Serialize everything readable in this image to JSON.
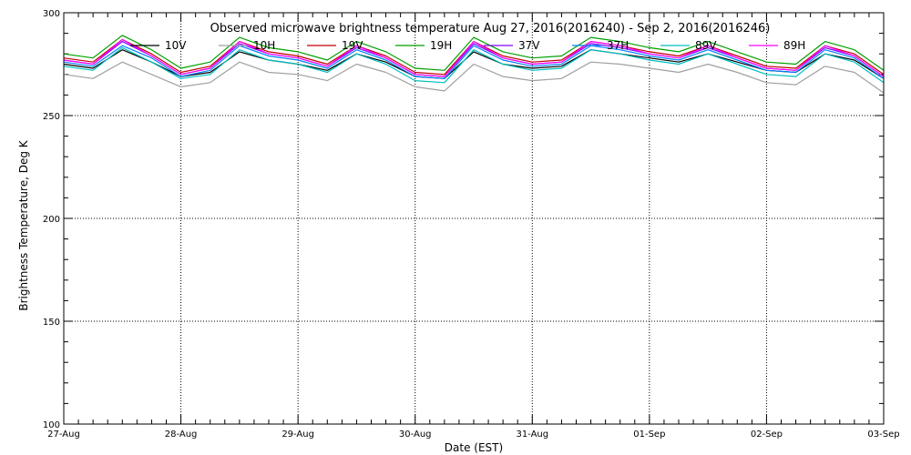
{
  "chart_data": {
    "type": "line",
    "title": "Observed microwave brightness temperature Aug 27, 2016(2016240) - Sep  2, 2016(2016246)",
    "xlabel": "Date (EST)",
    "ylabel": "Brightness Temperature, Deg K",
    "xlim": [
      "2016-08-27",
      "2016-09-03"
    ],
    "ylim": [
      100,
      300
    ],
    "grid": true,
    "legend_position": "top",
    "xticks": [
      "27-Aug",
      "28-Aug",
      "29-Aug",
      "30-Aug",
      "31-Aug",
      "01-Sep",
      "02-Sep",
      "03-Sep"
    ],
    "yticks": [
      100,
      150,
      200,
      250,
      300
    ],
    "x": [
      "2016-08-27 00:00",
      "2016-08-27 06:00",
      "2016-08-27 12:00",
      "2016-08-27 18:00",
      "2016-08-28 00:00",
      "2016-08-28 06:00",
      "2016-08-28 12:00",
      "2016-08-28 18:00",
      "2016-08-29 00:00",
      "2016-08-29 06:00",
      "2016-08-29 12:00",
      "2016-08-29 18:00",
      "2016-08-30 00:00",
      "2016-08-30 06:00",
      "2016-08-30 12:00",
      "2016-08-30 18:00",
      "2016-08-31 00:00",
      "2016-08-31 06:00",
      "2016-08-31 12:00",
      "2016-08-31 18:00",
      "2016-09-01 00:00",
      "2016-09-01 06:00",
      "2016-09-01 12:00",
      "2016-09-01 18:00",
      "2016-09-02 00:00",
      "2016-09-02 06:00",
      "2016-09-02 12:00",
      "2016-09-02 18:00",
      "2016-09-03 00:00"
    ],
    "series": [
      {
        "name": "10V",
        "color": "#000000",
        "values": [
          275,
          273,
          282,
          276,
          269,
          271,
          281,
          277,
          275,
          272,
          280,
          276,
          269,
          268,
          281,
          275,
          273,
          274,
          282,
          280,
          278,
          276,
          280,
          276,
          272,
          271,
          280,
          277,
          268
        ]
      },
      {
        "name": "10H",
        "color": "#a0a0a0",
        "values": [
          270,
          268,
          276,
          270,
          264,
          266,
          276,
          271,
          270,
          267,
          275,
          271,
          264,
          262,
          275,
          269,
          267,
          268,
          276,
          275,
          273,
          271,
          275,
          271,
          266,
          265,
          274,
          271,
          261
        ]
      },
      {
        "name": "19V",
        "color": "#c00000",
        "values": [
          278,
          276,
          287,
          280,
          271,
          274,
          286,
          281,
          279,
          275,
          284,
          279,
          271,
          270,
          286,
          279,
          276,
          277,
          286,
          284,
          281,
          279,
          284,
          279,
          274,
          273,
          284,
          280,
          270
        ]
      },
      {
        "name": "19H",
        "color": "#00a000",
        "values": [
          280,
          278,
          289,
          282,
          273,
          276,
          288,
          283,
          281,
          277,
          286,
          281,
          273,
          272,
          288,
          281,
          278,
          279,
          288,
          286,
          283,
          281,
          286,
          281,
          276,
          275,
          286,
          282,
          272
        ]
      },
      {
        "name": "37V",
        "color": "#8000ff",
        "values": [
          277,
          275,
          286,
          279,
          270,
          273,
          285,
          280,
          278,
          274,
          283,
          278,
          270,
          269,
          285,
          278,
          275,
          276,
          285,
          283,
          280,
          278,
          283,
          278,
          273,
          272,
          283,
          279,
          269
        ]
      },
      {
        "name": "37H",
        "color": "#0080ff",
        "values": [
          276,
          274,
          284,
          278,
          269,
          272,
          284,
          279,
          277,
          273,
          282,
          277,
          269,
          268,
          284,
          277,
          274,
          275,
          284,
          282,
          279,
          277,
          282,
          277,
          272,
          271,
          282,
          278,
          268
        ]
      },
      {
        "name": "89V",
        "color": "#00c0c0",
        "values": [
          274,
          272,
          283,
          276,
          268,
          270,
          282,
          277,
          275,
          271,
          280,
          275,
          267,
          266,
          282,
          275,
          272,
          273,
          282,
          280,
          277,
          275,
          280,
          275,
          270,
          269,
          280,
          276,
          266
        ]
      },
      {
        "name": "89H",
        "color": "#ff00ff",
        "values": [
          277,
          275,
          287,
          279,
          270,
          273,
          286,
          280,
          278,
          274,
          284,
          278,
          270,
          269,
          286,
          278,
          275,
          276,
          286,
          284,
          280,
          278,
          284,
          278,
          273,
          272,
          284,
          279,
          269
        ]
      }
    ]
  }
}
